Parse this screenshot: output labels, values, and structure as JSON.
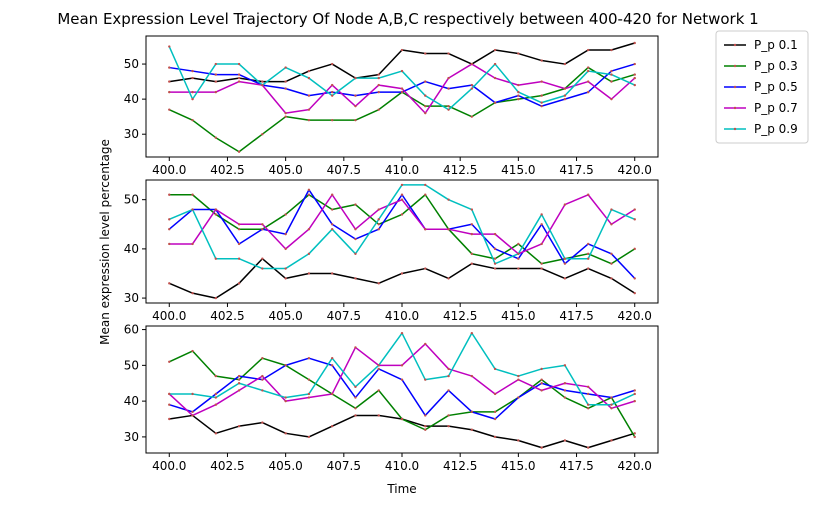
{
  "chart_data": {
    "type": "line",
    "title": "Mean Expression Level Trajectory Of Node A,B,C respectively between 400-420 for Network 1",
    "xlabel": "Time",
    "ylabel": "Mean expression level percentage",
    "legend_position": "outside-top-right",
    "grid": false,
    "x": [
      400,
      401,
      402,
      403,
      404,
      405,
      406,
      407,
      408,
      409,
      410,
      411,
      412,
      413,
      414,
      415,
      416,
      417,
      418,
      419,
      420
    ],
    "x_ticks": [
      400.0,
      402.5,
      405.0,
      407.5,
      410.0,
      412.5,
      415.0,
      417.5,
      420.0
    ],
    "x_tick_labels": [
      "400.0",
      "402.5",
      "405.0",
      "407.5",
      "410.0",
      "412.5",
      "415.0",
      "417.5",
      "420.0"
    ],
    "xlim": [
      399,
      421
    ],
    "series_styles": [
      {
        "name": "P_p 0.1",
        "color": "#000000"
      },
      {
        "name": "P_p 0.3",
        "color": "#008000"
      },
      {
        "name": "P_p 0.5",
        "color": "#0000ff"
      },
      {
        "name": "P_p 0.7",
        "color": "#bf00bf"
      },
      {
        "name": "P_p 0.9",
        "color": "#00bfbf"
      }
    ],
    "panels": [
      {
        "ylim": [
          23.5,
          58
        ],
        "y_ticks": [
          30,
          40,
          50
        ],
        "y_tick_labels": [
          "30",
          "40",
          "50"
        ],
        "series": [
          {
            "name": "P_p 0.1",
            "values": [
              45,
              46,
              45,
              46,
              45,
              45,
              48,
              50,
              46,
              47,
              54,
              53,
              53,
              50,
              54,
              53,
              51,
              50,
              54,
              54,
              56
            ]
          },
          {
            "name": "P_p 0.3",
            "values": [
              37,
              34,
              29,
              25,
              30,
              35,
              34,
              34,
              34,
              37,
              42,
              38,
              38,
              35,
              39,
              40,
              41,
              43,
              49,
              45,
              47
            ]
          },
          {
            "name": "P_p 0.5",
            "values": [
              49,
              48,
              47,
              47,
              44,
              43,
              41,
              42,
              41,
              42,
              42,
              45,
              43,
              44,
              39,
              41,
              38,
              40,
              42,
              48,
              50
            ]
          },
          {
            "name": "P_p 0.7",
            "values": [
              42,
              42,
              42,
              45,
              44,
              36,
              37,
              44,
              38,
              44,
              43,
              36,
              46,
              50,
              46,
              44,
              45,
              43,
              45,
              40,
              46
            ]
          },
          {
            "name": "P_p 0.9",
            "values": [
              55,
              40,
              50,
              50,
              44,
              49,
              46,
              41,
              46,
              46,
              48,
              41,
              37,
              43,
              50,
              42,
              39,
              41,
              48,
              47,
              44
            ]
          }
        ]
      },
      {
        "ylim": [
          29,
          54
        ],
        "y_ticks": [
          30,
          40,
          50
        ],
        "y_tick_labels": [
          "30",
          "40",
          "50"
        ],
        "series": [
          {
            "name": "P_p 0.1",
            "values": [
              33,
              31,
              30,
              33,
              38,
              34,
              35,
              35,
              34,
              33,
              35,
              36,
              34,
              37,
              36,
              36,
              36,
              34,
              36,
              34,
              31
            ]
          },
          {
            "name": "P_p 0.3",
            "values": [
              51,
              51,
              47,
              44,
              44,
              47,
              51,
              48,
              49,
              45,
              47,
              51,
              44,
              39,
              38,
              41,
              37,
              38,
              39,
              37,
              40
            ]
          },
          {
            "name": "P_p 0.5",
            "values": [
              44,
              48,
              48,
              41,
              44,
              43,
              52,
              45,
              42,
              44,
              51,
              44,
              44,
              45,
              40,
              38,
              45,
              37,
              41,
              39,
              34
            ]
          },
          {
            "name": "P_p 0.7",
            "values": [
              41,
              41,
              48,
              45,
              45,
              40,
              44,
              51,
              44,
              48,
              50,
              44,
              44,
              43,
              43,
              39,
              41,
              49,
              51,
              45,
              48
            ]
          },
          {
            "name": "P_p 0.9",
            "values": [
              46,
              48,
              38,
              38,
              36,
              36,
              39,
              44,
              39,
              46,
              53,
              53,
              50,
              48,
              37,
              39,
              47,
              38,
              38,
              48,
              46
            ]
          }
        ]
      },
      {
        "ylim": [
          25.5,
          61
        ],
        "y_ticks": [
          30,
          40,
          50,
          60
        ],
        "y_tick_labels": [
          "30",
          "40",
          "50",
          "60"
        ],
        "series": [
          {
            "name": "P_p 0.1",
            "values": [
              35,
              36,
              31,
              33,
              34,
              31,
              30,
              33,
              36,
              36,
              35,
              33,
              33,
              32,
              30,
              29,
              27,
              29,
              27,
              29,
              31
            ]
          },
          {
            "name": "P_p 0.3",
            "values": [
              51,
              54,
              47,
              46,
              52,
              50,
              46,
              42,
              38,
              43,
              35,
              32,
              36,
              37,
              37,
              41,
              46,
              41,
              38,
              41,
              30
            ]
          },
          {
            "name": "P_p 0.5",
            "values": [
              39,
              37,
              42,
              47,
              46,
              50,
              52,
              50,
              41,
              49,
              46,
              36,
              43,
              37,
              35,
              41,
              45,
              43,
              42,
              41,
              43
            ]
          },
          {
            "name": "P_p 0.7",
            "values": [
              42,
              36,
              39,
              43,
              47,
              40,
              41,
              42,
              55,
              50,
              50,
              56,
              49,
              47,
              42,
              46,
              43,
              45,
              44,
              38,
              40
            ]
          },
          {
            "name": "P_p 0.9",
            "values": [
              42,
              42,
              41,
              45,
              43,
              41,
              42,
              52,
              44,
              50,
              59,
              46,
              47,
              59,
              49,
              47,
              49,
              50,
              39,
              39,
              42
            ]
          }
        ]
      }
    ]
  }
}
